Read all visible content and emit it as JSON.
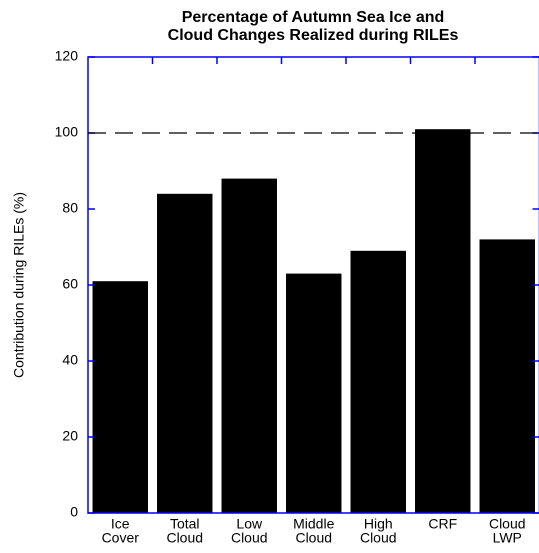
{
  "chart_data": {
    "type": "bar",
    "title": [
      "Percentage of Autumn Sea Ice and",
      "Cloud Changes Realized during RILEs"
    ],
    "y_label": "Contribution during RILEs (%)",
    "categories": [
      [
        "Ice",
        "Cover"
      ],
      [
        "Total",
        "Cloud"
      ],
      [
        "Low",
        "Cloud"
      ],
      [
        "Middle",
        "Cloud"
      ],
      [
        "High",
        "Cloud"
      ],
      [
        "CRF"
      ],
      [
        "Cloud",
        "LWP"
      ]
    ],
    "values": [
      61,
      84,
      88,
      63,
      69,
      101,
      72
    ],
    "color": "#000000",
    "axis_color": "#0000ff",
    "reference_line": 100,
    "ylim": [
      0,
      120
    ],
    "yticks": [
      0,
      20,
      40,
      60,
      80,
      100,
      120
    ],
    "grid": false
  }
}
